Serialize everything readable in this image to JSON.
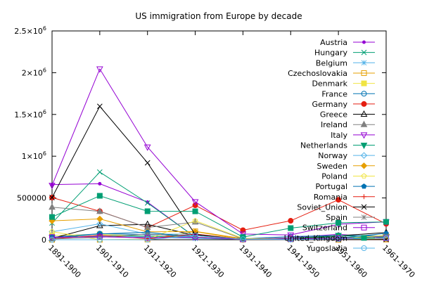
{
  "chart_data": {
    "type": "line",
    "title": "US immigration from Europe by decade",
    "xlabel": "",
    "ylabel": "",
    "categories": [
      "1891-1900",
      "1901-1910",
      "1911-1920",
      "1921-1930",
      "1931-1940",
      "1941-1950",
      "1951-1960",
      "1961-1970"
    ],
    "ylim": [
      0,
      2500000
    ],
    "yticks": [
      {
        "value": 0,
        "label": "0"
      },
      {
        "value": 500000,
        "label": "500000"
      },
      {
        "value": 1000000,
        "label": "1x10^6"
      },
      {
        "value": 1500000,
        "label": "1.5x10^6"
      },
      {
        "value": 2000000,
        "label": "2x10^6"
      },
      {
        "value": 2500000,
        "label": "2.5x10^6"
      }
    ],
    "legend_position": "top-right",
    "grid": false,
    "series": [
      {
        "name": "Austria",
        "color": "#9400d3",
        "marker": "dot",
        "values": [
          660000,
          670000,
          450000,
          30000,
          5000,
          24000,
          65000,
          20000
        ]
      },
      {
        "name": "Hungary",
        "color": "#009e73",
        "marker": "x",
        "values": [
          200000,
          810000,
          440000,
          32000,
          7000,
          4000,
          37000,
          5000
        ]
      },
      {
        "name": "Belgium",
        "color": "#56b4e9",
        "marker": "star",
        "values": [
          20000,
          40000,
          33000,
          15000,
          5000,
          13000,
          19000,
          9000
        ]
      },
      {
        "name": "Czechoslovakia",
        "color": "#e69f00",
        "marker": "square-open",
        "values": [
          0,
          0,
          3000,
          100000,
          14000,
          8000,
          1000,
          3000
        ]
      },
      {
        "name": "Denmark",
        "color": "#f0e442",
        "marker": "square",
        "values": [
          50000,
          65000,
          41000,
          32000,
          2000,
          5000,
          10000,
          9000
        ]
      },
      {
        "name": "France",
        "color": "#0072b2",
        "marker": "circle-open",
        "values": [
          30000,
          73000,
          61000,
          49000,
          12000,
          38000,
          51000,
          45000
        ]
      },
      {
        "name": "Germany",
        "color": "#e51e10",
        "marker": "circle",
        "values": [
          505000,
          341000,
          144000,
          412000,
          114000,
          227000,
          478000,
          190000
        ]
      },
      {
        "name": "Greece",
        "color": "#000000",
        "marker": "triangle-open",
        "values": [
          16000,
          168000,
          184000,
          51000,
          9000,
          8000,
          47000,
          86000
        ]
      },
      {
        "name": "Ireland",
        "color": "#808080",
        "marker": "triangle",
        "values": [
          389000,
          339000,
          146000,
          211000,
          11000,
          20000,
          48000,
          33000
        ]
      },
      {
        "name": "Italy",
        "color": "#9400d3",
        "marker": "triangle-down-open",
        "values": [
          651000,
          2045000,
          1110000,
          455000,
          68000,
          57000,
          185000,
          214000
        ]
      },
      {
        "name": "Netherlands",
        "color": "#009e73",
        "marker": "triangle-down",
        "values": [
          27000,
          48000,
          43000,
          26000,
          7000,
          14000,
          52000,
          30000
        ]
      },
      {
        "name": "Norway",
        "color": "#56b4e9",
        "marker": "diamond-open",
        "values": [
          96000,
          190000,
          66000,
          68000,
          4000,
          10000,
          22000,
          15000
        ]
      },
      {
        "name": "Sweden",
        "color": "#e69f00",
        "marker": "diamond",
        "values": [
          226000,
          249000,
          95000,
          97000,
          3000,
          11000,
          21000,
          17000
        ]
      },
      {
        "name": "Poland",
        "color": "#f0e442",
        "marker": "pentagon-open",
        "values": [
          97000,
          0,
          4000,
          227000,
          17000,
          7000,
          10000,
          53000
        ]
      },
      {
        "name": "Portugal",
        "color": "#0072b2",
        "marker": "pentagon",
        "values": [
          27000,
          69000,
          89000,
          29000,
          3000,
          7000,
          19000,
          76000
        ]
      },
      {
        "name": "Romania",
        "color": "#e51e10",
        "marker": "plus",
        "values": [
          12000,
          53000,
          13000,
          68000,
          3000,
          1000,
          1000,
          2000
        ]
      },
      {
        "name": "Soviet_Union",
        "color": "#000000",
        "marker": "x",
        "values": [
          505000,
          1597000,
          921000,
          62000,
          1000,
          500,
          600,
          2000
        ]
      },
      {
        "name": "Spain",
        "color": "#808080",
        "marker": "star",
        "values": [
          8000,
          28000,
          68000,
          28000,
          4000,
          3000,
          8000,
          44000
        ]
      },
      {
        "name": "Switzerland",
        "color": "#9400d3",
        "marker": "square-open",
        "values": [
          31000,
          35000,
          23000,
          30000,
          5000,
          10000,
          17000,
          19000
        ]
      },
      {
        "name": "United_Kingdom",
        "color": "#009e73",
        "marker": "square",
        "values": [
          272000,
          526000,
          341000,
          340000,
          32000,
          139000,
          202000,
          214000
        ]
      },
      {
        "name": "Yugoslavia",
        "color": "#56b4e9",
        "marker": "circle-open",
        "values": [
          0,
          0,
          1000,
          49000,
          6000,
          2000,
          8000,
          20000
        ]
      }
    ]
  }
}
